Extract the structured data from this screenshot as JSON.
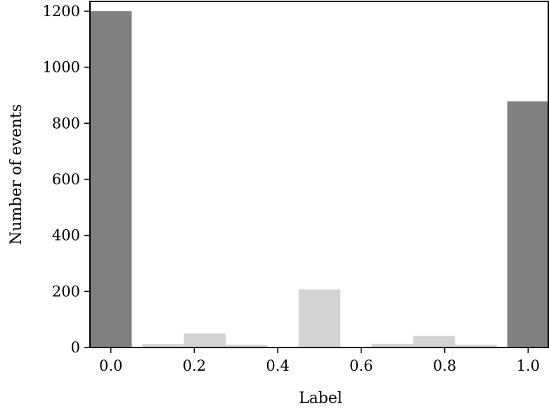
{
  "chart_data": {
    "type": "bar",
    "xlabel": "Label",
    "ylabel": "Number of events",
    "xlim": [
      -0.05,
      1.05
    ],
    "ylim": [
      0,
      1235
    ],
    "x_ticks": [
      "0.0",
      "0.2",
      "0.4",
      "0.6",
      "0.8",
      "1.0"
    ],
    "y_ticks": [
      "0",
      "200",
      "400",
      "600",
      "800",
      "1000",
      "1200"
    ],
    "grid": false,
    "series": [
      {
        "color": "#808080",
        "bars": [
          {
            "x": 0.0,
            "width": 0.1,
            "value": 1200
          },
          {
            "x": 1.0,
            "width": 0.1,
            "value": 878
          }
        ]
      },
      {
        "color": "#d3d3d3",
        "bars": [
          {
            "x": 0.125,
            "width": 0.1,
            "value": 12
          },
          {
            "x": 0.225,
            "width": 0.1,
            "value": 50
          },
          {
            "x": 0.325,
            "width": 0.1,
            "value": 10
          },
          {
            "x": 0.5,
            "width": 0.1,
            "value": 207
          },
          {
            "x": 0.675,
            "width": 0.1,
            "value": 13
          },
          {
            "x": 0.775,
            "width": 0.1,
            "value": 41
          },
          {
            "x": 0.875,
            "width": 0.1,
            "value": 10
          }
        ]
      }
    ]
  }
}
